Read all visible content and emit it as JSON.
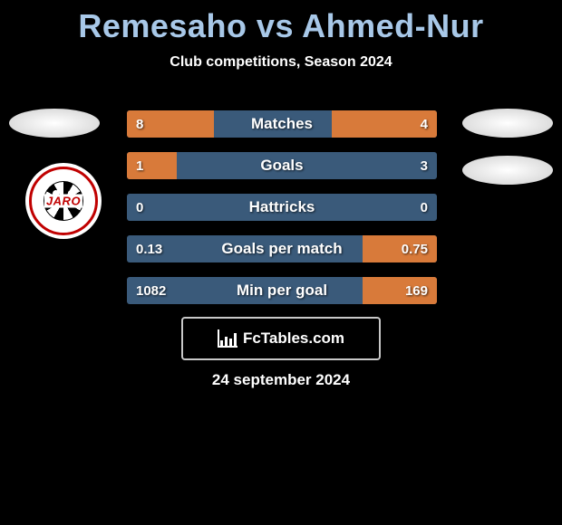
{
  "title": "Remesaho vs Ahmed-Nur",
  "subtitle": "Club competitions, Season 2024",
  "colors": {
    "background": "#000000",
    "title": "#a8c8e8",
    "text": "#ffffff",
    "bar_base": "#3a5a7a",
    "bar_highlight": "#d87a3a",
    "footer_border": "#c8c8c8",
    "logo_ring": "#c00000"
  },
  "logo_text": "JARO",
  "bars": [
    {
      "label": "Matches",
      "left": "8",
      "right": "4",
      "left_pct": 28,
      "right_pct": 34
    },
    {
      "label": "Goals",
      "left": "1",
      "right": "3",
      "left_pct": 16,
      "right_pct": 0
    },
    {
      "label": "Hattricks",
      "left": "0",
      "right": "0",
      "left_pct": 0,
      "right_pct": 0
    },
    {
      "label": "Goals per match",
      "left": "0.13",
      "right": "0.75",
      "left_pct": 0,
      "right_pct": 24
    },
    {
      "label": "Min per goal",
      "left": "1082",
      "right": "169",
      "left_pct": 0,
      "right_pct": 24
    }
  ],
  "footer_brand": "FcTables.com",
  "date": "24 september 2024"
}
